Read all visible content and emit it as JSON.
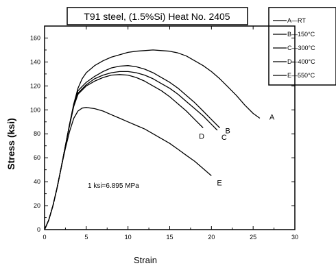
{
  "chart_data": {
    "type": "line",
    "title": "T91 steel, (1.5%Si) Heat No. 2405",
    "xlabel": "Strain",
    "ylabel": "Stress (ksi)",
    "xlim": [
      0,
      30
    ],
    "ylim": [
      0,
      170
    ],
    "xticks": [
      0,
      5,
      10,
      15,
      20,
      25,
      30
    ],
    "yticks": [
      0,
      20,
      40,
      60,
      80,
      100,
      120,
      140,
      160
    ],
    "legend_placement": "outside-top-right",
    "annotation": "1 ksi=6.895 MPa",
    "series": [
      {
        "name": "A—RT",
        "label": "A",
        "x": [
          0,
          0.5,
          1,
          1.5,
          2,
          2.5,
          3,
          3.5,
          4,
          4.5,
          5,
          6,
          7,
          8,
          9,
          10,
          11,
          12,
          13,
          14,
          15,
          16,
          17,
          18,
          19,
          20,
          21,
          22,
          23,
          24,
          25,
          25.8
        ],
        "y": [
          0,
          8,
          20,
          35,
          52,
          70,
          88,
          105,
          118,
          126,
          131,
          137,
          141,
          144,
          146,
          148,
          149,
          149.5,
          150,
          149.5,
          149,
          147.5,
          145,
          141,
          137,
          132,
          126,
          119,
          112,
          104,
          97,
          93
        ]
      },
      {
        "name": "B—150°C",
        "label": "B",
        "x": [
          0,
          0.5,
          1,
          1.5,
          2,
          2.5,
          3,
          3.5,
          4,
          5,
          6,
          7,
          8,
          9,
          10,
          11,
          12,
          13,
          14,
          15,
          16,
          17,
          18,
          19,
          20,
          21
        ],
        "y": [
          0,
          8,
          20,
          35,
          52,
          70,
          88,
          105,
          116,
          123,
          128,
          132,
          135,
          136.5,
          137,
          136,
          134,
          131,
          127,
          123,
          118,
          112,
          106,
          99,
          92,
          85
        ]
      },
      {
        "name": "C—300°C",
        "label": "C",
        "x": [
          0,
          0.5,
          1,
          1.5,
          2,
          2.5,
          3,
          3.5,
          4,
          5,
          6,
          7,
          8,
          9,
          10,
          11,
          12,
          13,
          14,
          15,
          16,
          17,
          18,
          19,
          20,
          20.7
        ],
        "y": [
          0,
          8,
          20,
          35,
          52,
          70,
          88,
          104,
          114,
          121,
          126,
          129,
          131,
          132,
          132,
          131,
          129,
          126,
          122,
          118,
          113,
          107,
          101,
          95,
          88,
          83
        ]
      },
      {
        "name": "D—400°C",
        "label": "D",
        "x": [
          0,
          0.5,
          1,
          1.5,
          2,
          2.5,
          3,
          3.5,
          4,
          5,
          6,
          7,
          8,
          9,
          10,
          11,
          12,
          13,
          14,
          15,
          16,
          17,
          18,
          19
        ],
        "y": [
          0,
          8,
          20,
          35,
          52,
          70,
          87,
          103,
          113,
          120,
          124,
          127,
          129,
          129.5,
          129,
          127,
          124,
          120,
          116,
          111,
          105,
          99,
          92,
          85
        ]
      },
      {
        "name": "E—550°C",
        "label": "E",
        "x": [
          0,
          0.5,
          1,
          1.5,
          2,
          2.5,
          3,
          3.5,
          4,
          4.5,
          5,
          6,
          7,
          8,
          9,
          10,
          11,
          12,
          13,
          14,
          15,
          16,
          17,
          18,
          19,
          20
        ],
        "y": [
          0,
          8,
          20,
          35,
          52,
          68,
          82,
          93,
          99,
          101.5,
          102,
          101,
          99,
          96,
          93,
          90,
          87,
          84,
          80,
          76,
          72,
          67,
          62,
          57,
          51,
          45
        ]
      }
    ]
  }
}
